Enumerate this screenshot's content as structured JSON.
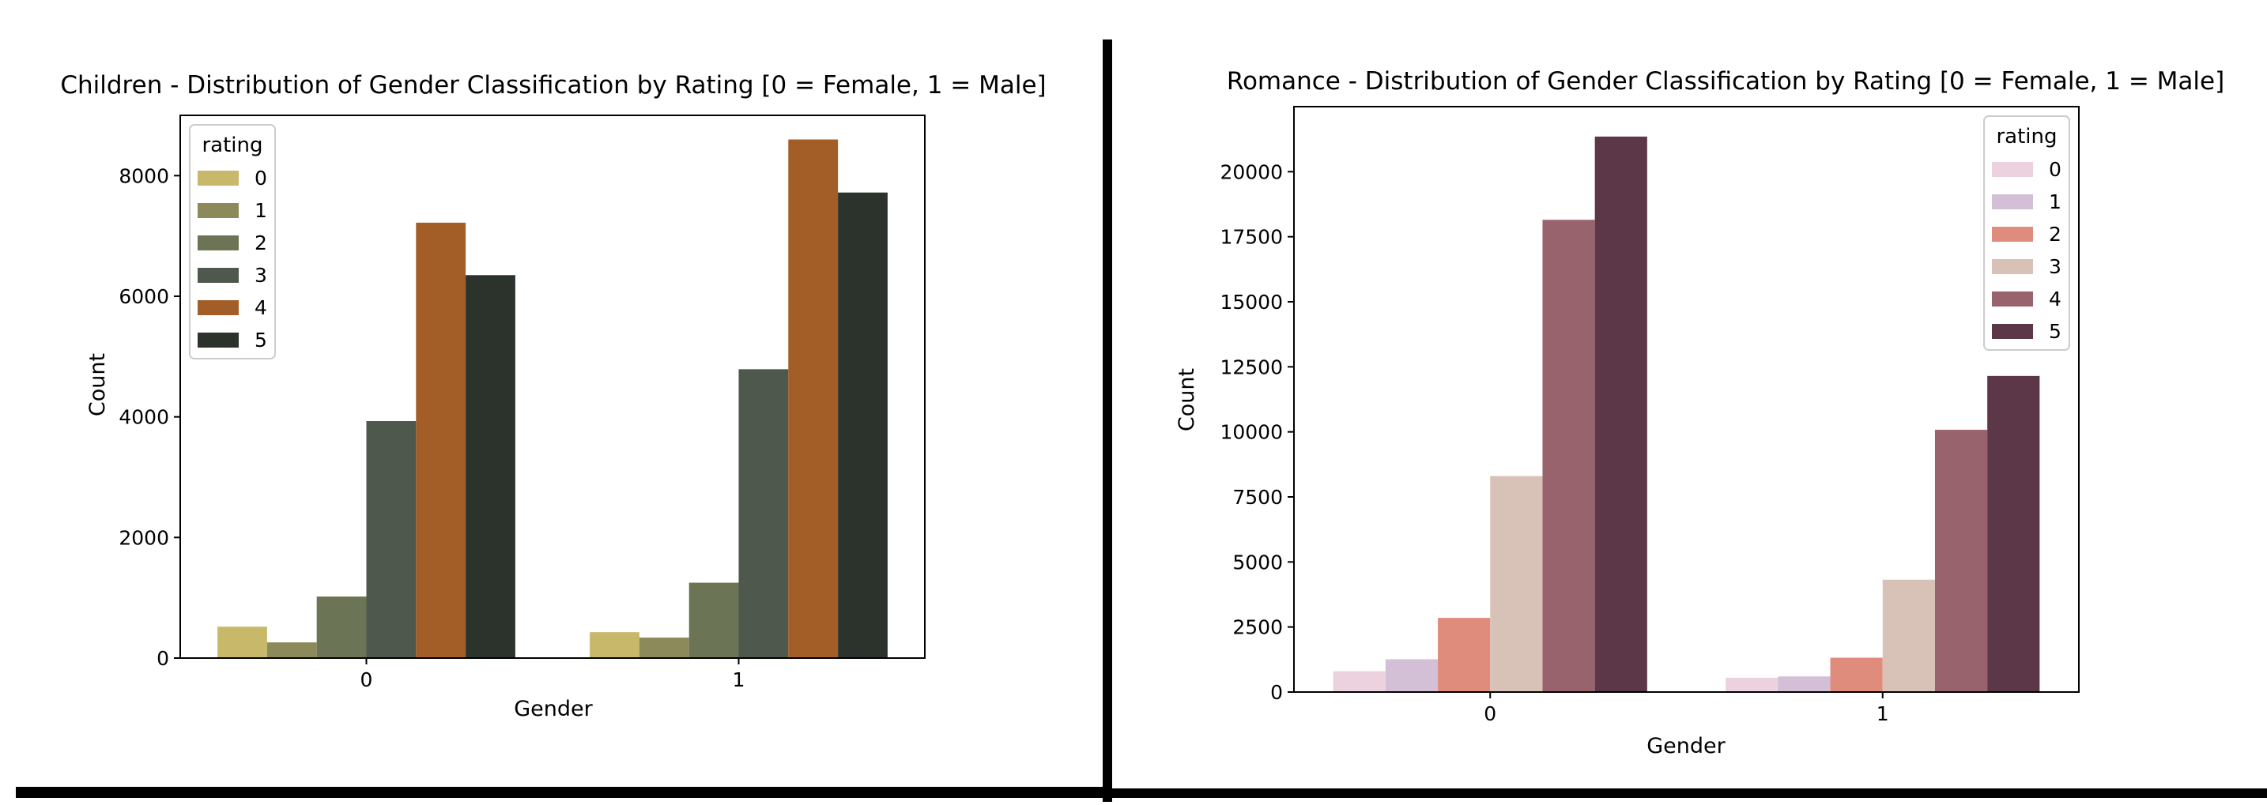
{
  "chart_data": [
    {
      "type": "bar",
      "title": "Children - Distribution of Gender Classification by Rating [0 = Female, 1 = Male]",
      "xlabel": "Gender",
      "ylabel": "Count",
      "categories": [
        "0",
        "1"
      ],
      "ylim": [
        0,
        9000
      ],
      "yticks": [
        0,
        2000,
        4000,
        6000,
        8000
      ],
      "legend": {
        "title": "rating",
        "position": "top-left"
      },
      "grid": false,
      "series": [
        {
          "name": "0",
          "color": "#c8b86a",
          "values": [
            520,
            430
          ]
        },
        {
          "name": "1",
          "color": "#8c8a5a",
          "values": [
            260,
            340
          ]
        },
        {
          "name": "2",
          "color": "#6b7555",
          "values": [
            1020,
            1250
          ]
        },
        {
          "name": "3",
          "color": "#4e584c",
          "values": [
            3930,
            4790
          ]
        },
        {
          "name": "4",
          "color": "#a35e28",
          "values": [
            7220,
            8600
          ]
        },
        {
          "name": "5",
          "color": "#2c322c",
          "values": [
            6350,
            7720
          ]
        }
      ]
    },
    {
      "type": "bar",
      "title": "Romance - Distribution of Gender Classification by Rating [0 = Female, 1 = Male]",
      "xlabel": "Gender",
      "ylabel": "Count",
      "categories": [
        "0",
        "1"
      ],
      "ylim": [
        0,
        22500
      ],
      "yticks": [
        0,
        2500,
        5000,
        7500,
        10000,
        12500,
        15000,
        17500,
        20000
      ],
      "legend": {
        "title": "rating",
        "position": "top-right"
      },
      "grid": false,
      "series": [
        {
          "name": "0",
          "color": "#ecd2df",
          "values": [
            800,
            550
          ]
        },
        {
          "name": "1",
          "color": "#d3bfd6",
          "values": [
            1260,
            600
          ]
        },
        {
          "name": "2",
          "color": "#e08c7c",
          "values": [
            2850,
            1320
          ]
        },
        {
          "name": "3",
          "color": "#d8c2b8",
          "values": [
            8300,
            4320
          ]
        },
        {
          "name": "4",
          "color": "#99636d",
          "values": [
            18150,
            10080
          ]
        },
        {
          "name": "5",
          "color": "#5b3747",
          "values": [
            21350,
            12150
          ]
        }
      ]
    }
  ]
}
